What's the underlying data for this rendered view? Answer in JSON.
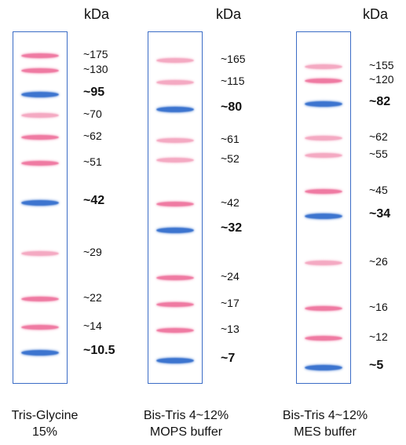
{
  "unit_label": "kDa",
  "colors": {
    "pink": "#ef7aa2",
    "light_pink": "#f4a9c2",
    "blue": "#3c74cf",
    "frame": "#3b6cc6"
  },
  "panels": [
    {
      "caption_line1": "Tris-Glycine",
      "caption_line2": "15%",
      "bands": [
        {
          "label": "~175",
          "color": "pink",
          "bold": false
        },
        {
          "label": "~130",
          "color": "pink",
          "bold": false
        },
        {
          "label": "~95",
          "color": "blue",
          "bold": true
        },
        {
          "label": "~70",
          "color": "light_pink",
          "bold": false
        },
        {
          "label": "~62",
          "color": "pink",
          "bold": false
        },
        {
          "label": "~51",
          "color": "pink",
          "bold": false
        },
        {
          "label": "~42",
          "color": "blue",
          "bold": true
        },
        {
          "label": "~29",
          "color": "light_pink",
          "bold": false
        },
        {
          "label": "~22",
          "color": "pink",
          "bold": false
        },
        {
          "label": "~14",
          "color": "pink",
          "bold": false
        },
        {
          "label": "~10.5",
          "color": "blue",
          "bold": true
        }
      ]
    },
    {
      "caption_line1": "Bis-Tris 4~12%",
      "caption_line2": "MOPS buffer",
      "bands": [
        {
          "label": "~165",
          "color": "light_pink",
          "bold": false
        },
        {
          "label": "~115",
          "color": "light_pink",
          "bold": false
        },
        {
          "label": "~80",
          "color": "blue",
          "bold": true
        },
        {
          "label": "~61",
          "color": "light_pink",
          "bold": false
        },
        {
          "label": "~52",
          "color": "light_pink",
          "bold": false
        },
        {
          "label": "~42",
          "color": "pink",
          "bold": false
        },
        {
          "label": "~32",
          "color": "blue",
          "bold": true
        },
        {
          "label": "~24",
          "color": "pink",
          "bold": false
        },
        {
          "label": "~17",
          "color": "pink",
          "bold": false
        },
        {
          "label": "~13",
          "color": "pink",
          "bold": false
        },
        {
          "label": "~7",
          "color": "blue",
          "bold": true
        }
      ]
    },
    {
      "caption_line1": "Bis-Tris 4~12%",
      "caption_line2": "MES buffer",
      "bands": [
        {
          "label": "~155",
          "color": "light_pink",
          "bold": false
        },
        {
          "label": "~120",
          "color": "pink",
          "bold": false
        },
        {
          "label": "~82",
          "color": "blue",
          "bold": true
        },
        {
          "label": "~62",
          "color": "light_pink",
          "bold": false
        },
        {
          "label": "~55",
          "color": "light_pink",
          "bold": false
        },
        {
          "label": "~45",
          "color": "pink",
          "bold": false
        },
        {
          "label": "~34",
          "color": "blue",
          "bold": true
        },
        {
          "label": "~26",
          "color": "light_pink",
          "bold": false
        },
        {
          "label": "~16",
          "color": "pink",
          "bold": false
        },
        {
          "label": "~12",
          "color": "pink",
          "bold": false
        },
        {
          "label": "~5",
          "color": "blue",
          "bold": true
        }
      ]
    }
  ]
}
